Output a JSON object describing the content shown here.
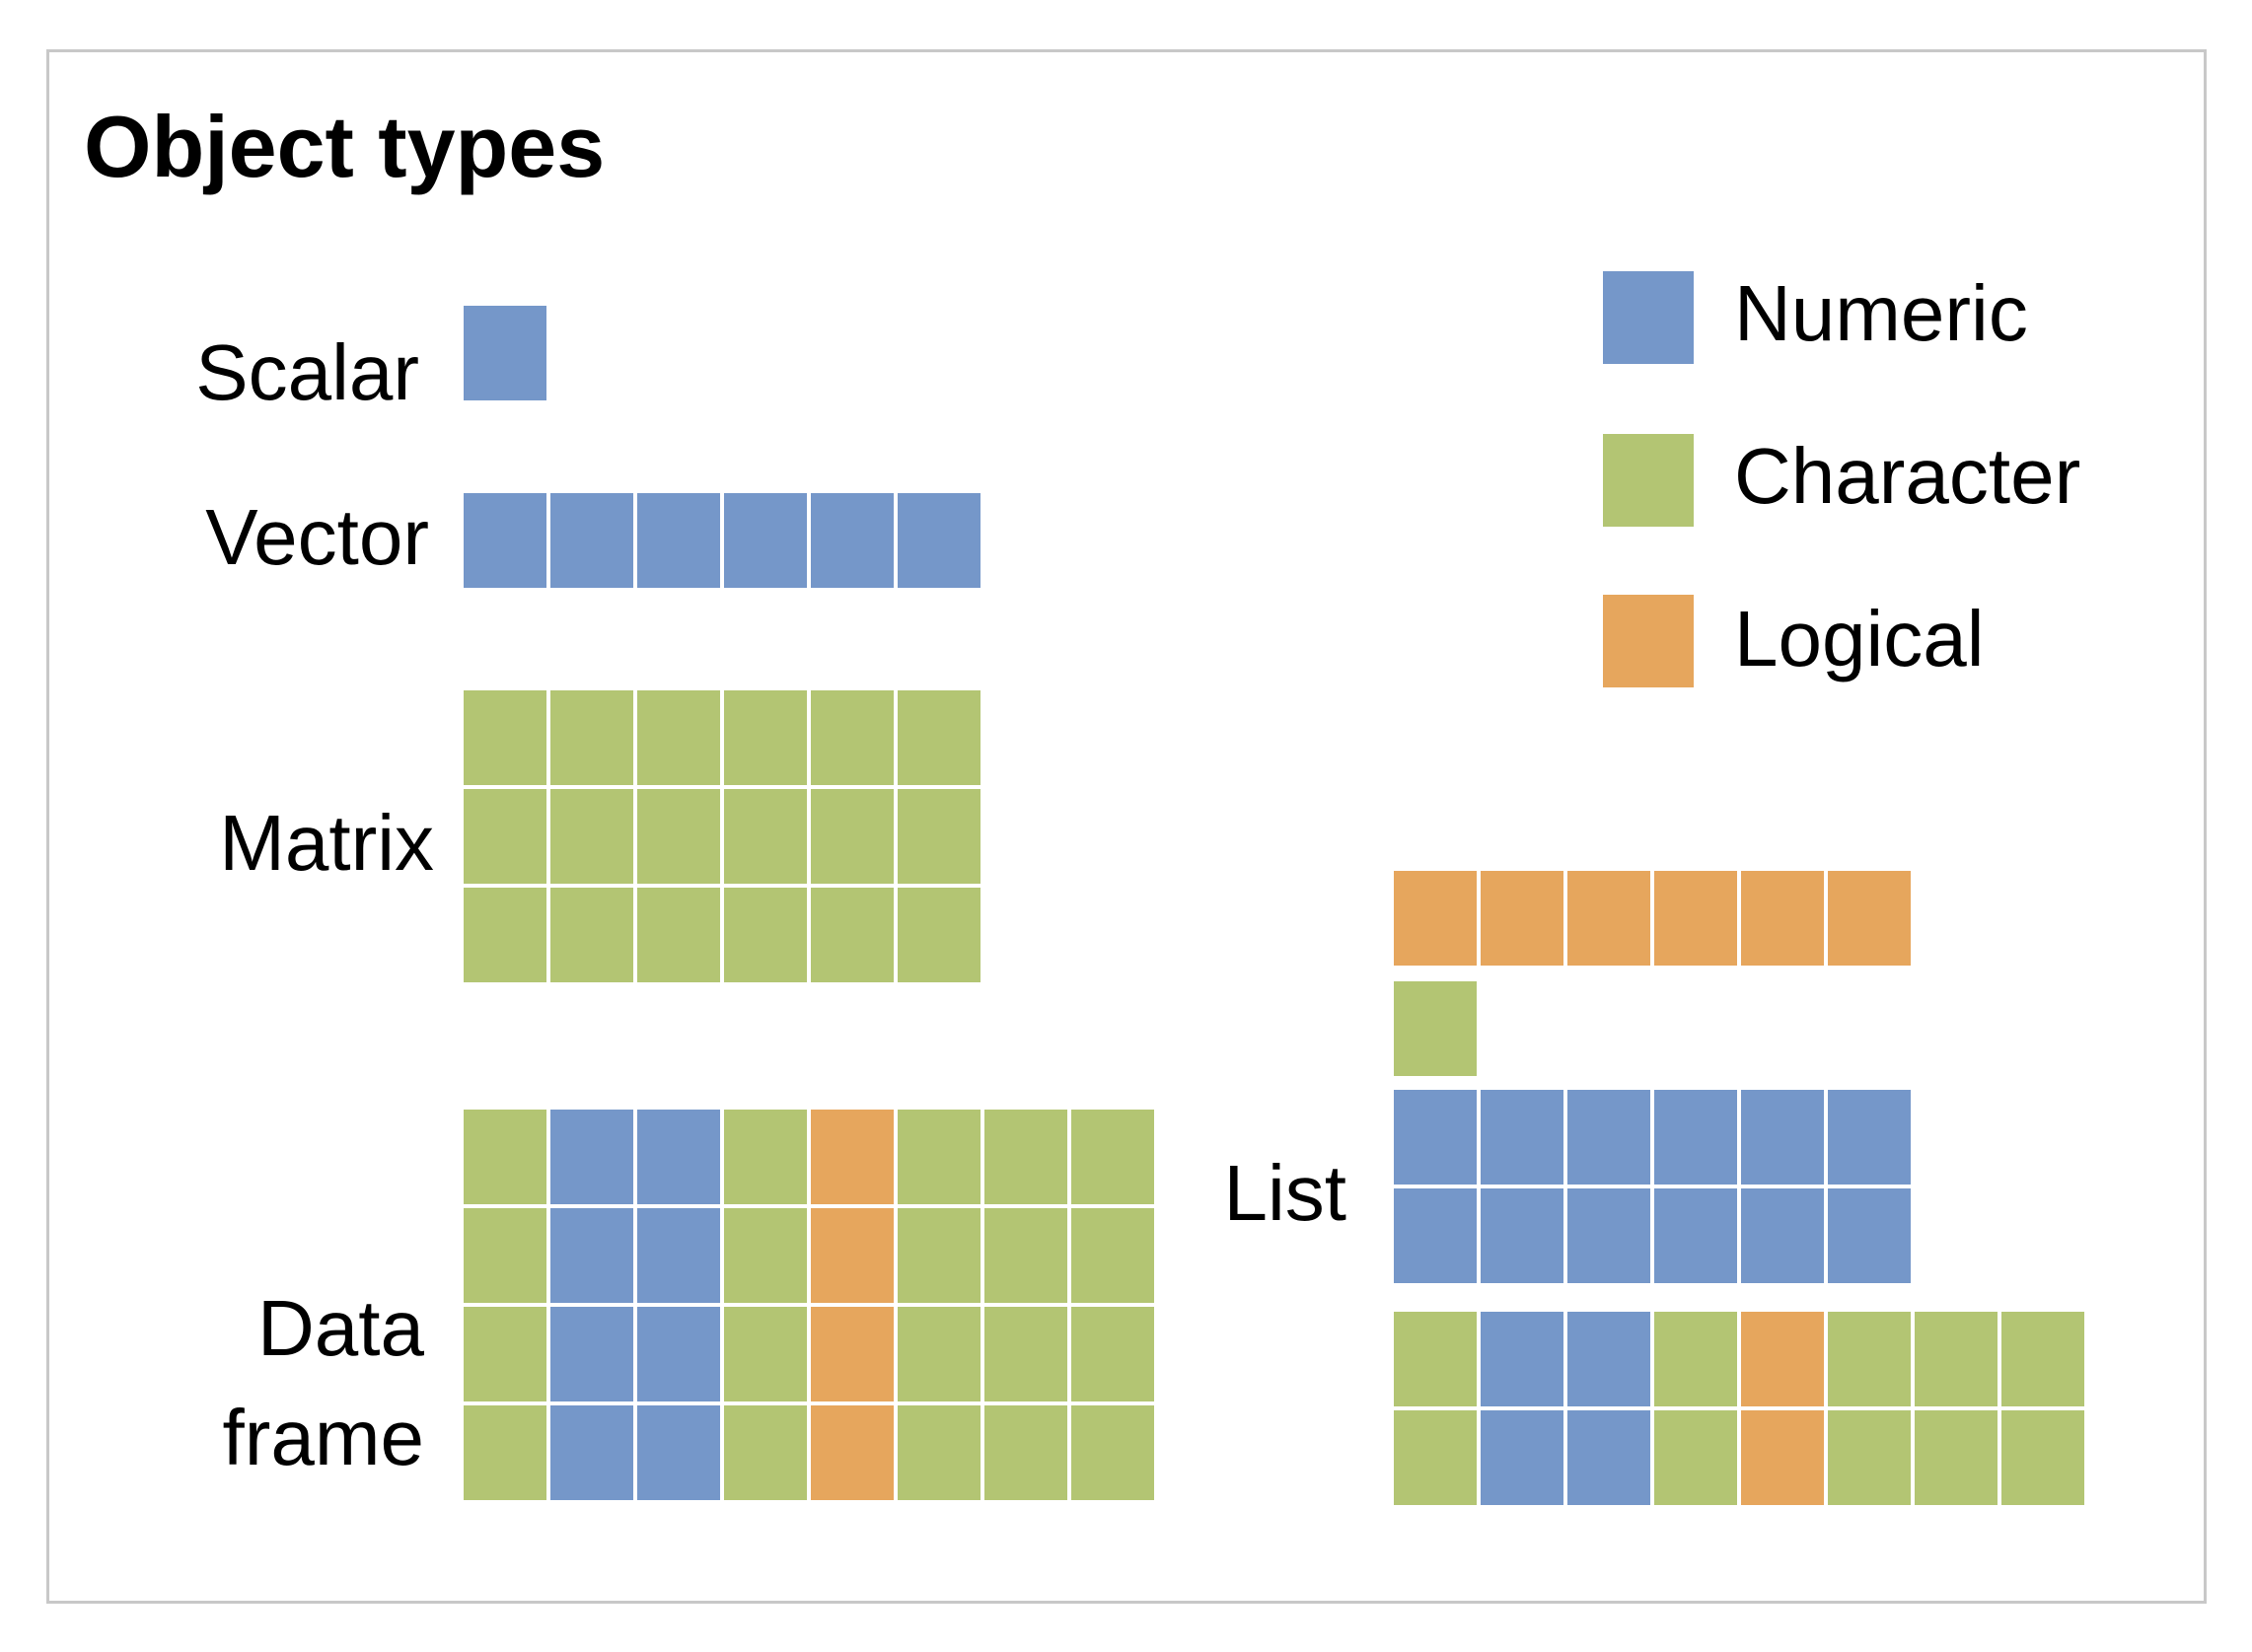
{
  "title": "Object types",
  "colors": {
    "numeric": "#7597c9",
    "character": "#b3c573",
    "logical": "#e6a65d"
  },
  "legend": [
    {
      "key": "numeric",
      "label": "Numeric"
    },
    {
      "key": "character",
      "label": "Character"
    },
    {
      "key": "logical",
      "label": "Logical"
    }
  ],
  "labels": {
    "scalar": "Scalar",
    "vector": "Vector",
    "matrix": "Matrix",
    "dataframe_line1": "Data",
    "dataframe_line2": "frame",
    "list": "List"
  },
  "objects": {
    "scalar": [
      [
        "numeric"
      ]
    ],
    "vector": [
      [
        "numeric",
        "numeric",
        "numeric",
        "numeric",
        "numeric",
        "numeric"
      ]
    ],
    "matrix": [
      [
        "character",
        "character",
        "character",
        "character",
        "character",
        "character"
      ],
      [
        "character",
        "character",
        "character",
        "character",
        "character",
        "character"
      ],
      [
        "character",
        "character",
        "character",
        "character",
        "character",
        "character"
      ]
    ],
    "dataframe": [
      [
        "character",
        "numeric",
        "numeric",
        "character",
        "logical",
        "character",
        "character",
        "character"
      ],
      [
        "character",
        "numeric",
        "numeric",
        "character",
        "logical",
        "character",
        "character",
        "character"
      ],
      [
        "character",
        "numeric",
        "numeric",
        "character",
        "logical",
        "character",
        "character",
        "character"
      ],
      [
        "character",
        "numeric",
        "numeric",
        "character",
        "logical",
        "character",
        "character",
        "character"
      ]
    ],
    "list_vector": [
      [
        "logical",
        "logical",
        "logical",
        "logical",
        "logical",
        "logical"
      ]
    ],
    "list_scalar": [
      [
        "character"
      ]
    ],
    "list_matrix": [
      [
        "numeric",
        "numeric",
        "numeric",
        "numeric",
        "numeric",
        "numeric"
      ],
      [
        "numeric",
        "numeric",
        "numeric",
        "numeric",
        "numeric",
        "numeric"
      ]
    ],
    "list_dataframe": [
      [
        "character",
        "numeric",
        "numeric",
        "character",
        "logical",
        "character",
        "character",
        "character"
      ],
      [
        "character",
        "numeric",
        "numeric",
        "character",
        "logical",
        "character",
        "character",
        "character"
      ]
    ]
  }
}
